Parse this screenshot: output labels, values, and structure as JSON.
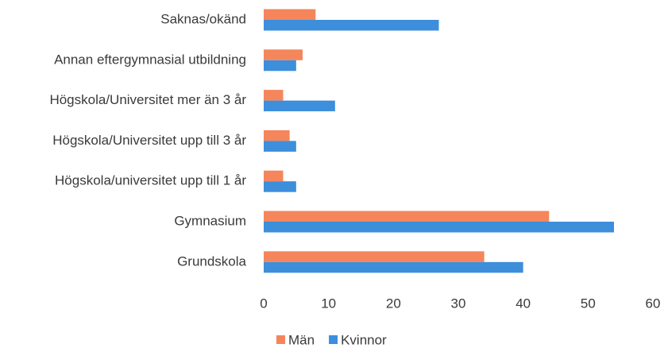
{
  "chart_data": {
    "type": "hbar",
    "categories": [
      "Saknas/okänd",
      "Annan eftergymnasial utbildning",
      "Högskola/Universitet mer än 3 år",
      "Högskola/Universitet upp till 3 år",
      "Högskola/universitet upp till 1 år",
      "Gymnasium",
      "Grundskola"
    ],
    "series": [
      {
        "name": "Män",
        "color": "#f5865c",
        "values": [
          8,
          6,
          3,
          4,
          3,
          44,
          34
        ]
      },
      {
        "name": "Kvinnor",
        "color": "#3d8edb",
        "values": [
          27,
          5,
          11,
          5,
          5,
          54,
          40
        ]
      }
    ],
    "xlim": [
      0,
      60
    ],
    "xticks": [
      0,
      10,
      20,
      30,
      40,
      50,
      60
    ],
    "legend": "bottom"
  }
}
